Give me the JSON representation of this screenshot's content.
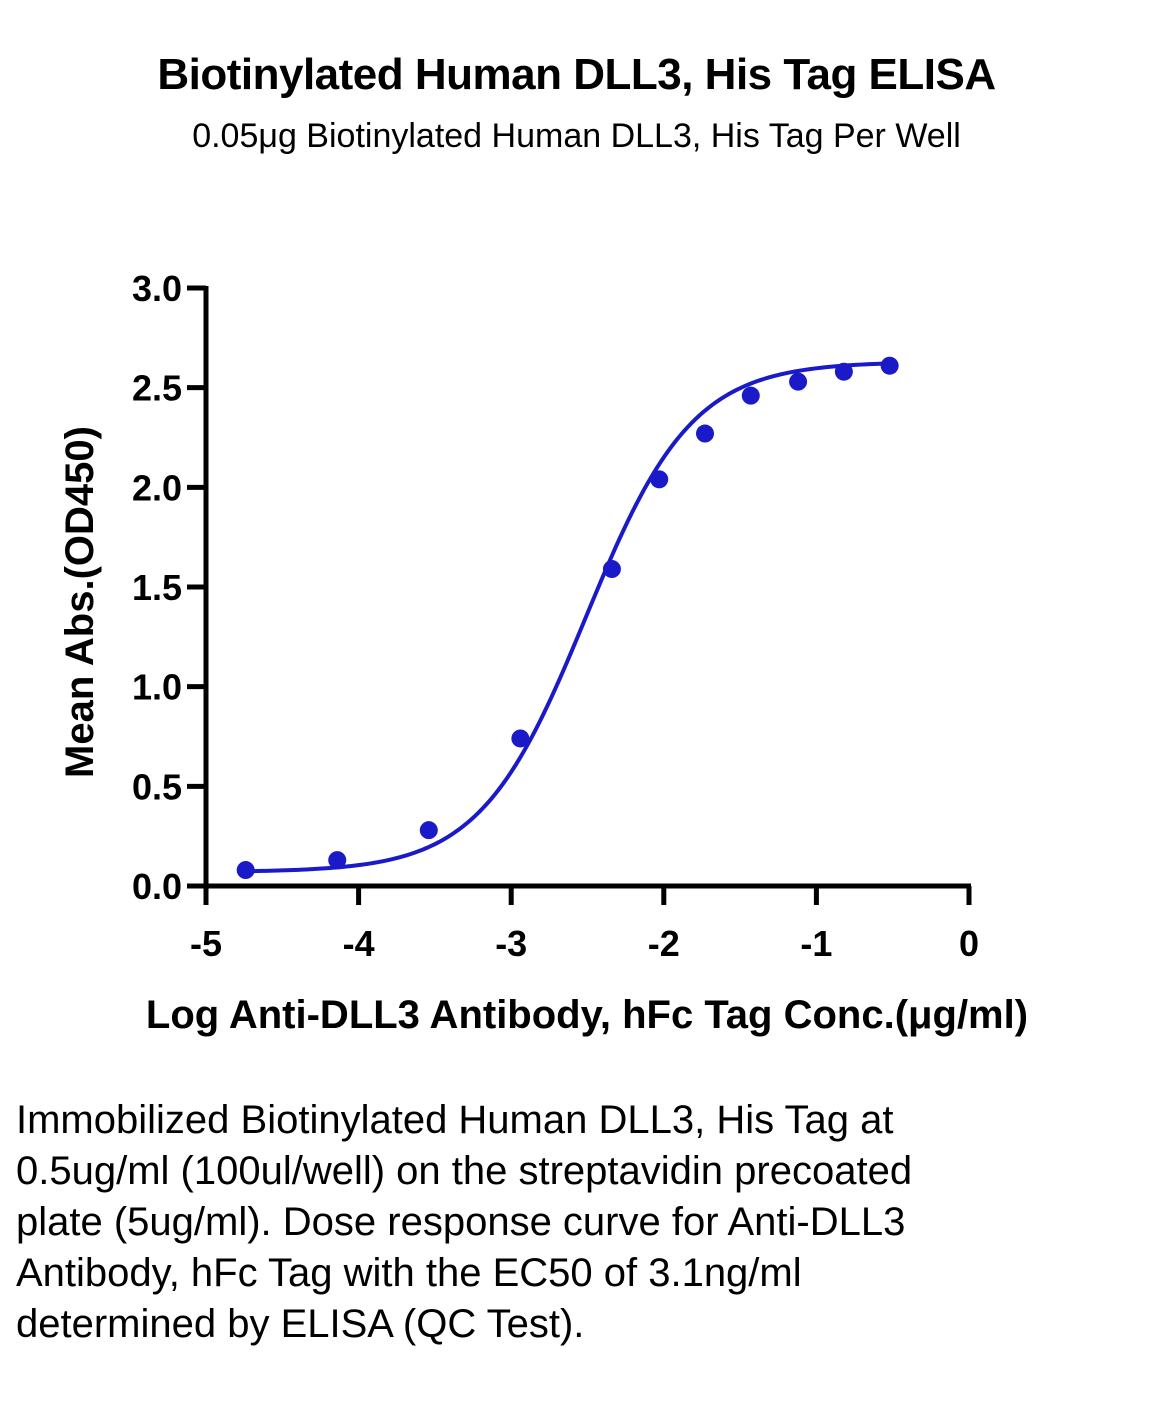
{
  "chart_data": {
    "type": "scatter",
    "title": "Biotinylated Human DLL3, His Tag ELISA",
    "subtitle": "0.05μg Biotinylated Human DLL3, His Tag Per Well",
    "xlabel": "Log Anti-DLL3 Antibody, hFc Tag Conc.(μg/ml)",
    "ylabel": "Mean Abs.(OD450)",
    "xlim": [
      -5,
      0
    ],
    "ylim": [
      0,
      3.0
    ],
    "x_ticks": [
      "-5",
      "-4",
      "-3",
      "-2",
      "-1",
      "0"
    ],
    "y_ticks": [
      "0.0",
      "0.5",
      "1.0",
      "1.5",
      "2.0",
      "2.5",
      "3.0"
    ],
    "grid": false,
    "series_color": "#1a1ac8",
    "points": {
      "x": [
        -4.74,
        -4.14,
        -3.54,
        -2.94,
        -2.34,
        -2.03,
        -1.73,
        -1.43,
        -1.12,
        -0.82,
        -0.52
      ],
      "y": [
        0.08,
        0.13,
        0.28,
        0.74,
        1.59,
        2.04,
        2.27,
        2.46,
        2.53,
        2.58,
        2.61
      ]
    },
    "fit": {
      "model": "4PL",
      "bottom": 0.07,
      "top": 2.63,
      "logEC50": -2.51,
      "hill": 1.25
    }
  },
  "caption": "Immobilized Biotinylated Human DLL3, His Tag at 0.5ug/ml (100ul/well) on the streptavidin precoated plate (5ug/ml). Dose response curve for Anti-DLL3 Antibody, hFc Tag with the EC50 of 3.1ng/ml determined by ELISA (QC Test)."
}
